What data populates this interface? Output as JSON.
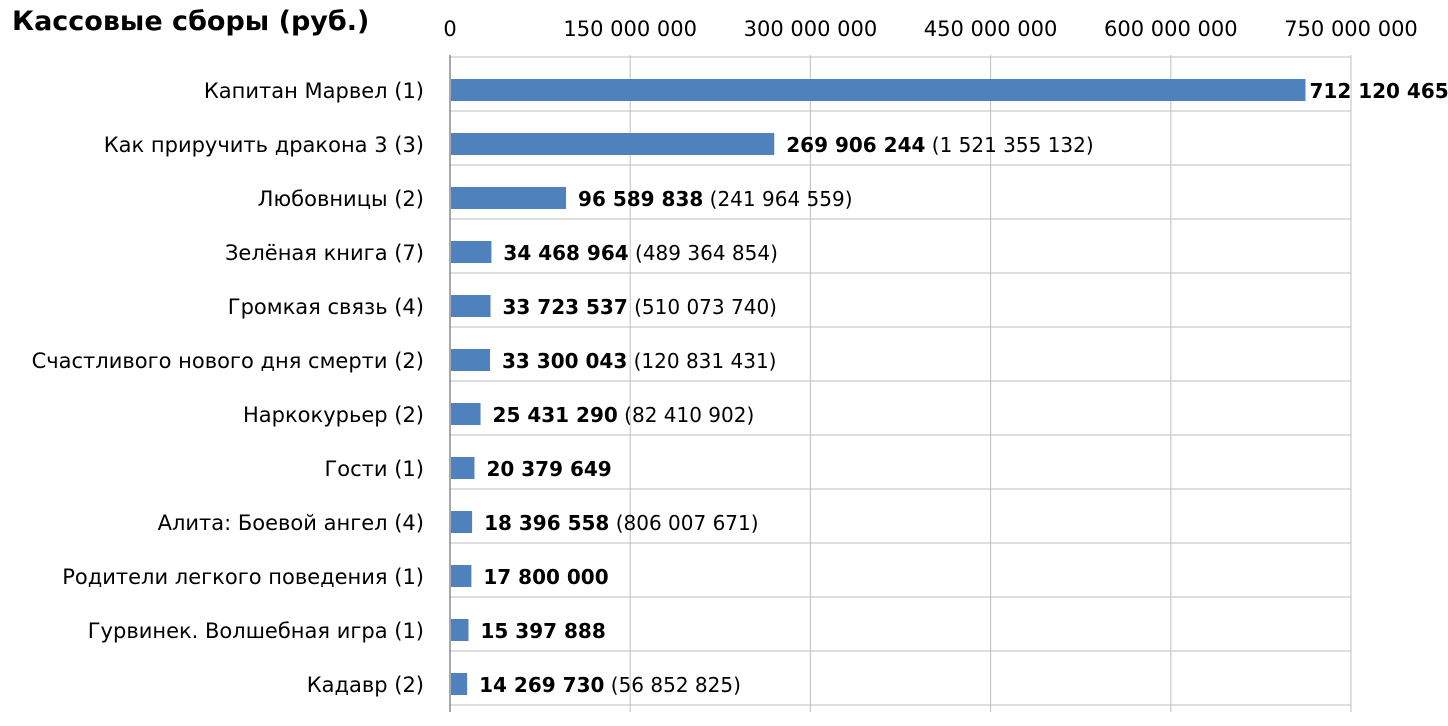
{
  "chart_data": {
    "type": "bar",
    "orientation": "horizontal",
    "title": "Кассовые сборы (руб.)",
    "xlabel": "",
    "ylabel": "",
    "xlim": [
      0,
      750000000
    ],
    "x_ticks": [
      0,
      150000000,
      300000000,
      450000000,
      600000000,
      750000000
    ],
    "x_tick_labels": [
      "0",
      "150 000 000",
      "300 000 000",
      "450 000 000",
      "600 000 000",
      "750 000 000"
    ],
    "axis_position": "top",
    "grid": true,
    "legend": "none",
    "bar_color": "#4f81bd",
    "categories": [
      "Капитан Марвел (1)",
      "Как приручить дракона 3 (3)",
      "Любовницы (2)",
      "Зелёная книга (7)",
      "Громкая связь (4)",
      "Счастливого нового дня смерти (2)",
      "Наркокурьер (2)",
      "Гости (1)",
      "Алита: Боевой ангел (4)",
      "Родители легкого поведения (1)",
      "Гурвинек. Волшебная игра (1)",
      "Кадавр (2)"
    ],
    "values": [
      712120465,
      269906244,
      96589838,
      34468964,
      33723537,
      33300043,
      25431290,
      20379649,
      18396558,
      17800000,
      15397888,
      14269730
    ],
    "value_labels": [
      "712 120 465",
      "269 906 244",
      "96 589 838",
      "34 468 964",
      "33 723 537",
      "33 300 043",
      "25 431 290",
      "20 379 649",
      "18 396 558",
      "17 800 000",
      "15 397 888",
      "14 269 730"
    ],
    "total_labels": [
      "",
      "(1 521 355 132)",
      "(241 964 559)",
      "(489 364 854)",
      "(510 073 740)",
      "(120 831 431)",
      "(82 410 902)",
      "",
      "(806 007 671)",
      "",
      "",
      "(56 852 825)"
    ]
  }
}
